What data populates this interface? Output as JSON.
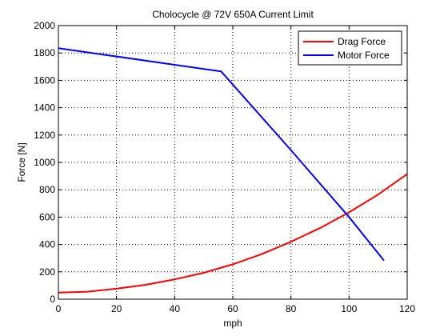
{
  "chart_data": {
    "type": "line",
    "title": "Cholocycle @ 72V 650A Current Limit",
    "xlabel": "mph",
    "ylabel": "Force [N]",
    "xlim": [
      0,
      120
    ],
    "ylim": [
      0,
      2000
    ],
    "xticks": [
      0,
      20,
      40,
      60,
      80,
      100,
      120
    ],
    "yticks": [
      0,
      200,
      400,
      600,
      800,
      1000,
      1200,
      1400,
      1600,
      1800,
      2000
    ],
    "grid": true,
    "legend_position": "top-right",
    "series": [
      {
        "name": "Drag Force",
        "color": "#ff0000",
        "x": [
          0,
          10,
          20,
          30,
          40,
          50,
          60,
          70,
          80,
          90,
          100,
          110,
          120
        ],
        "y": [
          48,
          55,
          77,
          105,
          145,
          193,
          255,
          330,
          420,
          520,
          635,
          765,
          915
        ]
      },
      {
        "name": "Motor Force",
        "color": "#0000ff",
        "x": [
          0,
          56,
          80,
          100,
          112
        ],
        "y": [
          1835,
          1665,
          1090,
          600,
          283
        ]
      }
    ]
  }
}
